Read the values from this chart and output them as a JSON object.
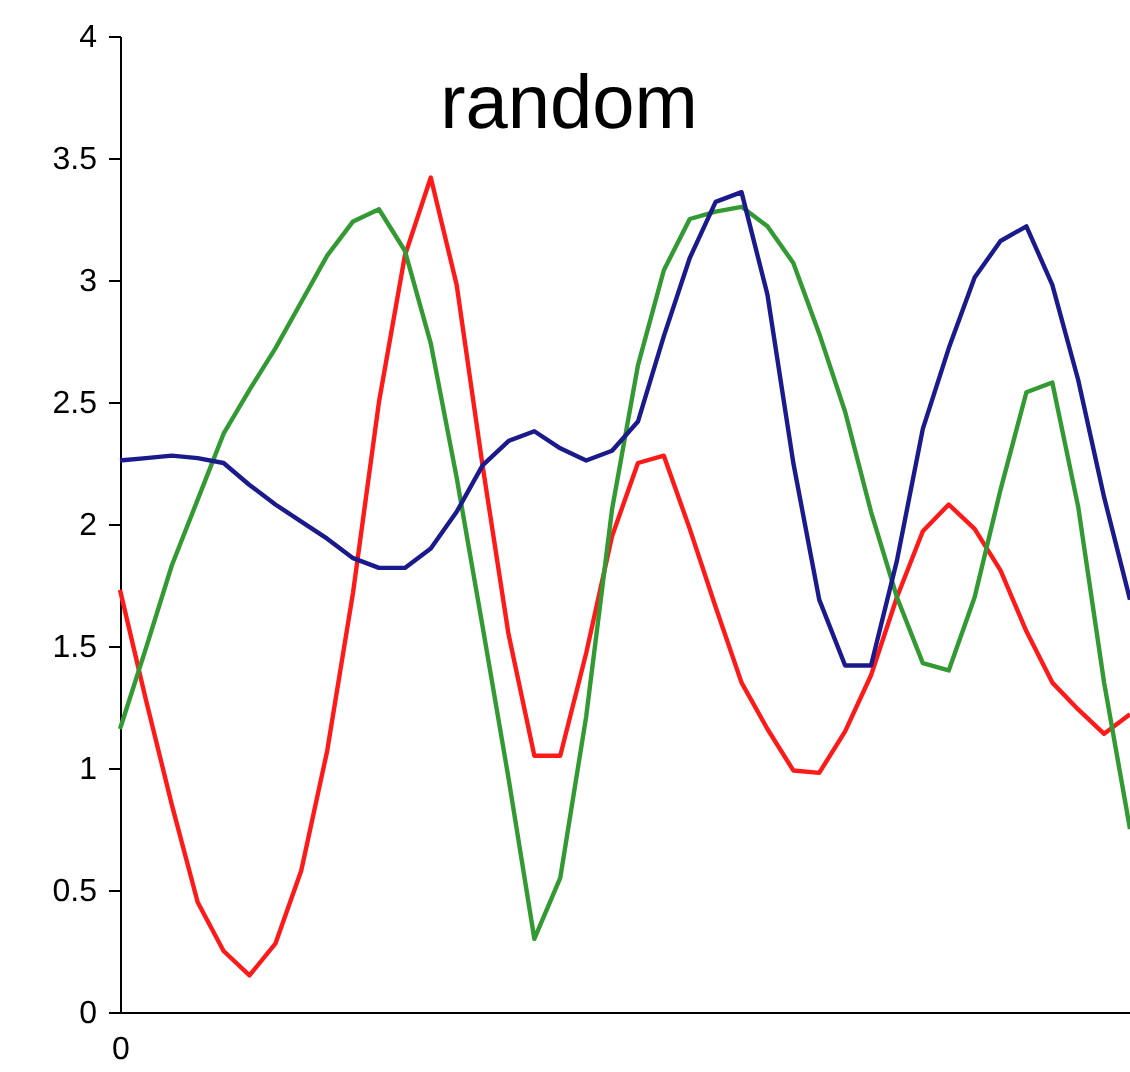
{
  "chart_data": {
    "type": "line",
    "title": "random",
    "categories": [
      "0",
      null,
      null,
      null,
      null,
      null,
      null,
      null,
      null,
      null,
      null,
      null,
      null,
      null,
      null,
      null,
      null,
      null,
      null,
      null,
      null,
      null,
      null,
      null,
      null,
      null,
      null,
      null,
      null,
      null,
      null,
      null,
      null,
      null,
      null,
      null,
      null,
      null,
      null,
      null
    ],
    "ylim": [
      0,
      4
    ],
    "yticks": [
      0,
      0.5,
      1,
      1.5,
      2,
      2.5,
      3,
      3.5,
      4
    ],
    "grid": false,
    "marker": "none",
    "line_style": "solid",
    "series": [
      {
        "color": "#ff1a1a",
        "values": [
          1.73,
          1.28,
          0.85,
          0.45,
          0.25,
          0.15,
          0.28,
          0.58,
          1.07,
          1.72,
          2.5,
          3.1,
          3.42,
          2.98,
          2.24,
          1.55,
          1.05,
          1.05,
          1.47,
          1.95,
          2.25,
          2.28,
          1.98,
          1.66,
          1.35,
          1.16,
          0.99,
          0.98,
          1.15,
          1.38,
          1.7,
          1.97,
          2.08,
          1.98,
          1.81,
          1.56,
          1.35,
          1.24,
          1.14,
          1.22
        ]
      },
      {
        "color": "#339933",
        "values": [
          1.16,
          1.49,
          1.83,
          2.1,
          2.37,
          2.55,
          2.72,
          2.91,
          3.1,
          3.24,
          3.29,
          3.12,
          2.74,
          2.19,
          1.58,
          0.96,
          0.3,
          0.55,
          1.21,
          2.06,
          2.65,
          3.04,
          3.25,
          3.28,
          3.3,
          3.22,
          3.07,
          2.78,
          2.46,
          2.05,
          1.7,
          1.43,
          1.4,
          1.7,
          2.14,
          2.54,
          2.58,
          2.07,
          1.35,
          0.75
        ]
      },
      {
        "color": "#1a1a8c",
        "values": [
          2.26,
          2.27,
          2.28,
          2.27,
          2.25,
          2.16,
          2.08,
          2.01,
          1.94,
          1.86,
          1.82,
          1.82,
          1.9,
          2.05,
          2.24,
          2.34,
          2.38,
          2.31,
          2.26,
          2.3,
          2.42,
          2.77,
          3.09,
          3.32,
          3.36,
          2.94,
          2.25,
          1.69,
          1.42,
          1.42,
          1.85,
          2.39,
          2.72,
          3.01,
          3.16,
          3.22,
          2.98,
          2.59,
          2.11,
          1.69
        ]
      }
    ]
  }
}
